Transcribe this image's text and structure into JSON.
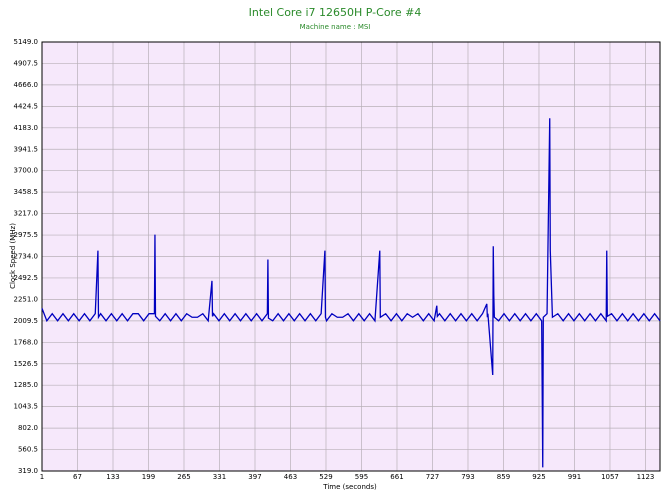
{
  "chart_data": {
    "type": "line",
    "title": "Intel Core i7 12650H P-Core #4",
    "subtitle": "Machine name : MSI",
    "xlabel": "Time (seconds)",
    "ylabel": "Clock Speed (MHz)",
    "grid": true,
    "xlim": [
      1,
      1150
    ],
    "ylim": [
      319,
      5149
    ],
    "xticks": [
      1,
      67,
      133,
      199,
      265,
      331,
      397,
      463,
      529,
      595,
      661,
      727,
      793,
      859,
      925,
      991,
      1057,
      1123
    ],
    "yticks": [
      {
        "value": 319,
        "label": "319.0"
      },
      560.5,
      {
        "value": 802,
        "label": "802.0"
      },
      1043.5,
      {
        "value": 1285,
        "label": "1285.0"
      },
      1526.5,
      {
        "value": 1768,
        "label": "1768.0"
      },
      2009.5,
      {
        "value": 2251,
        "label": "2251.0"
      },
      2492.5,
      {
        "value": 2734,
        "label": "2734.0"
      },
      2975.5,
      {
        "value": 3217,
        "label": "3217.0"
      },
      3458.5,
      {
        "value": 3700,
        "label": "3700.0"
      },
      3941.5,
      {
        "value": 4183,
        "label": "4183.0"
      },
      4424.5,
      {
        "value": 4666,
        "label": "4666.0"
      },
      4907.5,
      {
        "value": 5149,
        "label": "5149.0"
      }
    ],
    "x": [
      1,
      10,
      20,
      30,
      40,
      50,
      60,
      70,
      80,
      90,
      100,
      105,
      106,
      110,
      120,
      130,
      140,
      150,
      160,
      170,
      180,
      190,
      200,
      210,
      211,
      212,
      220,
      230,
      240,
      250,
      260,
      270,
      280,
      290,
      300,
      310,
      317,
      318,
      320,
      330,
      340,
      350,
      360,
      370,
      380,
      390,
      400,
      410,
      420,
      421,
      422,
      430,
      440,
      450,
      460,
      470,
      480,
      490,
      500,
      510,
      520,
      527,
      528,
      530,
      540,
      550,
      560,
      570,
      580,
      590,
      600,
      610,
      620,
      629,
      630,
      640,
      650,
      660,
      670,
      680,
      690,
      700,
      710,
      720,
      730,
      735,
      736,
      740,
      750,
      760,
      770,
      780,
      790,
      800,
      810,
      820,
      828,
      829,
      830,
      839,
      840,
      841,
      842,
      850,
      860,
      870,
      880,
      890,
      900,
      910,
      920,
      930,
      932,
      933,
      940,
      945,
      946,
      950,
      960,
      970,
      980,
      990,
      1000,
      1010,
      1020,
      1030,
      1040,
      1050,
      1051,
      1052,
      1060,
      1070,
      1080,
      1090,
      1100,
      1110,
      1120,
      1130,
      1140,
      1150
    ],
    "series": [
      {
        "color": "#0000c0",
        "values": [
          2150,
          2010,
          2090,
          2010,
          2090,
          2010,
          2090,
          2010,
          2090,
          2010,
          2090,
          2800,
          2050,
          2090,
          2010,
          2090,
          2010,
          2090,
          2010,
          2090,
          2090,
          2010,
          2090,
          2090,
          2980,
          2060,
          2010,
          2090,
          2010,
          2090,
          2010,
          2090,
          2050,
          2050,
          2090,
          2010,
          2460,
          2060,
          2090,
          2010,
          2090,
          2010,
          2090,
          2010,
          2090,
          2010,
          2090,
          2010,
          2090,
          2700,
          2040,
          2010,
          2090,
          2010,
          2090,
          2010,
          2090,
          2010,
          2090,
          2010,
          2090,
          2800,
          2050,
          2010,
          2090,
          2050,
          2050,
          2090,
          2010,
          2090,
          2010,
          2090,
          2010,
          2800,
          2050,
          2090,
          2010,
          2090,
          2010,
          2090,
          2050,
          2090,
          2010,
          2090,
          2010,
          2180,
          2060,
          2090,
          2010,
          2090,
          2010,
          2090,
          2010,
          2090,
          2010,
          2090,
          2200,
          2050,
          2090,
          1400,
          2850,
          2300,
          2050,
          2010,
          2090,
          2010,
          2090,
          2010,
          2090,
          2010,
          2090,
          2010,
          360,
          2050,
          2090,
          4290,
          2800,
          2050,
          2090,
          2010,
          2090,
          2010,
          2090,
          2010,
          2090,
          2010,
          2090,
          2010,
          2800,
          2060,
          2090,
          2010,
          2090,
          2010,
          2090,
          2010,
          2090,
          2010,
          2090,
          2010
        ]
      }
    ]
  }
}
